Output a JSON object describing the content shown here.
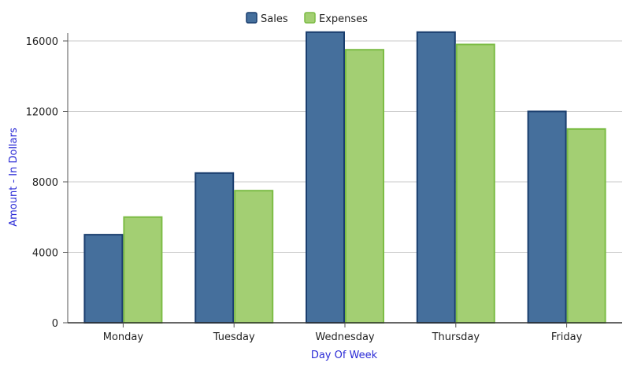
{
  "chart_data": {
    "type": "bar",
    "categories": [
      "Monday",
      "Tuesday",
      "Wednesday",
      "Thursday",
      "Friday"
    ],
    "series": [
      {
        "name": "Sales",
        "values": [
          5000,
          8500,
          16500,
          16500,
          12000
        ],
        "fill": "#456f9c",
        "stroke": "#1a3e6e"
      },
      {
        "name": "Expenses",
        "values": [
          6000,
          7500,
          15500,
          15800,
          11000
        ],
        "fill": "#a3cf73",
        "stroke": "#7cbc45"
      }
    ],
    "xlabel": "Day Of Week",
    "ylabel": "Amount - In Dollars",
    "ylim": [
      0,
      16000
    ],
    "yticks": [
      0,
      4000,
      8000,
      12000,
      16000
    ],
    "grid": true,
    "legend": "top-center"
  }
}
